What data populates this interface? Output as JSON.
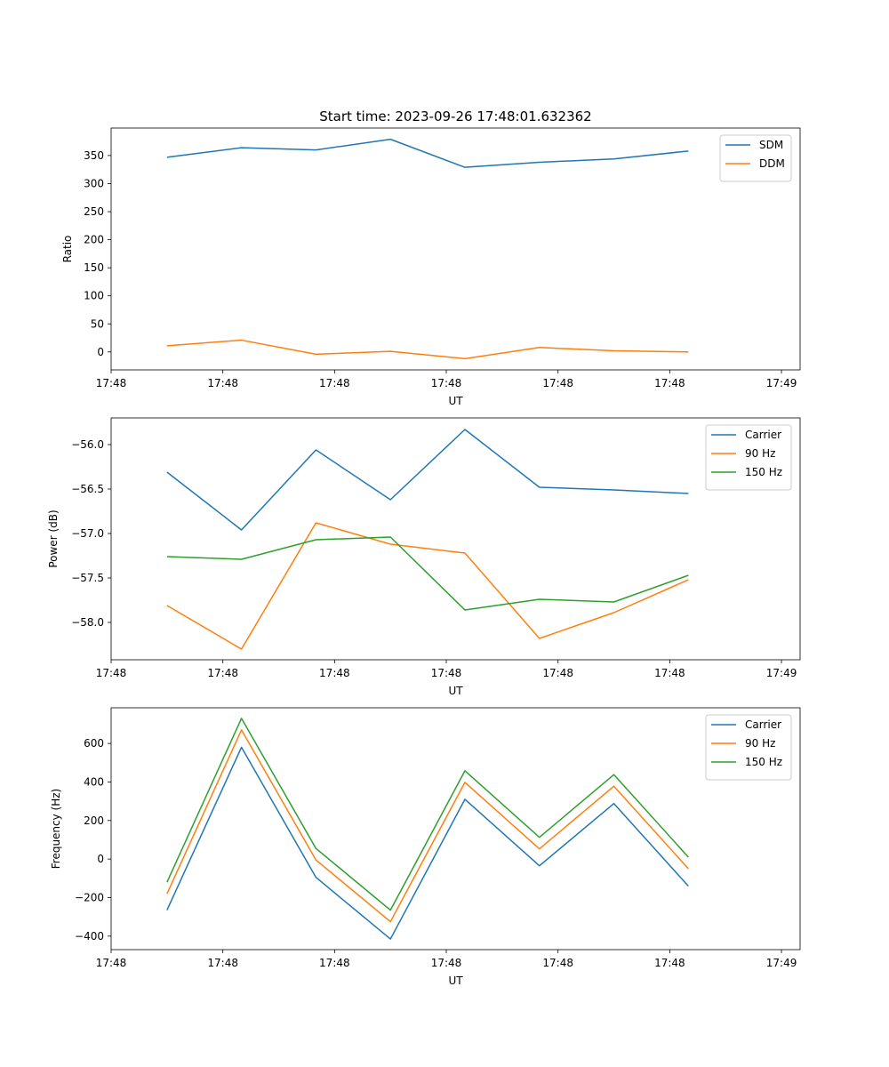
{
  "colors": {
    "blue": "#1f77b4",
    "orange": "#ff7f0e",
    "green": "#2ca02c"
  },
  "chart_data": [
    {
      "type": "line",
      "title": "Start time: 2023-09-26 17:48:01.632362",
      "xlabel": "UT",
      "ylabel": "Ratio",
      "x": [
        0,
        1,
        2,
        3,
        4,
        5,
        6,
        7
      ],
      "xlim": [
        -0.75,
        8.5
      ],
      "xticks": [
        -0.75,
        0.75,
        2.25,
        3.75,
        5.25,
        6.75,
        8.25
      ],
      "xtick_labels": [
        "17:48",
        "17:48",
        "17:48",
        "17:48",
        "17:48",
        "17:48",
        "17:49"
      ],
      "ylim": [
        -32,
        399
      ],
      "yticks": [
        0,
        50,
        100,
        150,
        200,
        250,
        300,
        350
      ],
      "ytick_labels": [
        "0",
        "50",
        "100",
        "150",
        "200",
        "250",
        "300",
        "350"
      ],
      "legend": "top-right",
      "series": [
        {
          "name": "SDM",
          "color": "#1f77b4",
          "values": [
            347,
            364,
            360,
            379,
            329,
            338,
            344,
            358
          ]
        },
        {
          "name": "DDM",
          "color": "#ff7f0e",
          "values": [
            11,
            21,
            -4,
            1,
            -12,
            8,
            2,
            0
          ]
        }
      ]
    },
    {
      "type": "line",
      "title": "",
      "xlabel": "UT",
      "ylabel": "Power (dB)",
      "x": [
        0,
        1,
        2,
        3,
        4,
        5,
        6,
        7
      ],
      "xlim": [
        -0.75,
        8.5
      ],
      "xticks": [
        -0.75,
        0.75,
        2.25,
        3.75,
        5.25,
        6.75,
        8.25
      ],
      "xtick_labels": [
        "17:48",
        "17:48",
        "17:48",
        "17:48",
        "17:48",
        "17:48",
        "17:49"
      ],
      "ylim": [
        -58.42,
        -55.7
      ],
      "yticks": [
        -58.0,
        -57.5,
        -57.0,
        -56.5,
        -56.0
      ],
      "ytick_labels": [
        "−58.0",
        "−57.5",
        "−57.0",
        "−56.5",
        "−56.0"
      ],
      "legend": "top-right",
      "series": [
        {
          "name": "Carrier",
          "color": "#1f77b4",
          "values": [
            -56.31,
            -56.96,
            -56.06,
            -56.62,
            -55.83,
            -56.48,
            -56.51,
            -56.55
          ]
        },
        {
          "name": "90 Hz",
          "color": "#ff7f0e",
          "values": [
            -57.81,
            -58.3,
            -56.88,
            -57.12,
            -57.22,
            -58.18,
            -57.89,
            -57.52
          ]
        },
        {
          "name": "150 Hz",
          "color": "#2ca02c",
          "values": [
            -57.26,
            -57.29,
            -57.07,
            -57.04,
            -57.86,
            -57.74,
            -57.77,
            -57.47
          ]
        }
      ]
    },
    {
      "type": "line",
      "title": "",
      "xlabel": "UT",
      "ylabel": "Frequency (Hz)",
      "x": [
        0,
        1,
        2,
        3,
        4,
        5,
        6,
        7
      ],
      "xlim": [
        -0.75,
        8.5
      ],
      "xticks": [
        -0.75,
        0.75,
        2.25,
        3.75,
        5.25,
        6.75,
        8.25
      ],
      "xtick_labels": [
        "17:48",
        "17:48",
        "17:48",
        "17:48",
        "17:48",
        "17:48",
        "17:49"
      ],
      "ylim": [
        -470,
        785
      ],
      "yticks": [
        -400,
        -200,
        0,
        200,
        400,
        600
      ],
      "ytick_labels": [
        "−400",
        "−200",
        "0",
        "200",
        "400",
        "600"
      ],
      "legend": "top-right",
      "series": [
        {
          "name": "Carrier",
          "color": "#1f77b4",
          "values": [
            -265,
            580,
            -95,
            -415,
            310,
            -35,
            288,
            -140
          ]
        },
        {
          "name": "90 Hz",
          "color": "#ff7f0e",
          "values": [
            -180,
            670,
            -5,
            -325,
            398,
            53,
            378,
            -50
          ]
        },
        {
          "name": "150 Hz",
          "color": "#2ca02c",
          "values": [
            -120,
            730,
            55,
            -265,
            458,
            113,
            438,
            10
          ]
        }
      ]
    }
  ]
}
